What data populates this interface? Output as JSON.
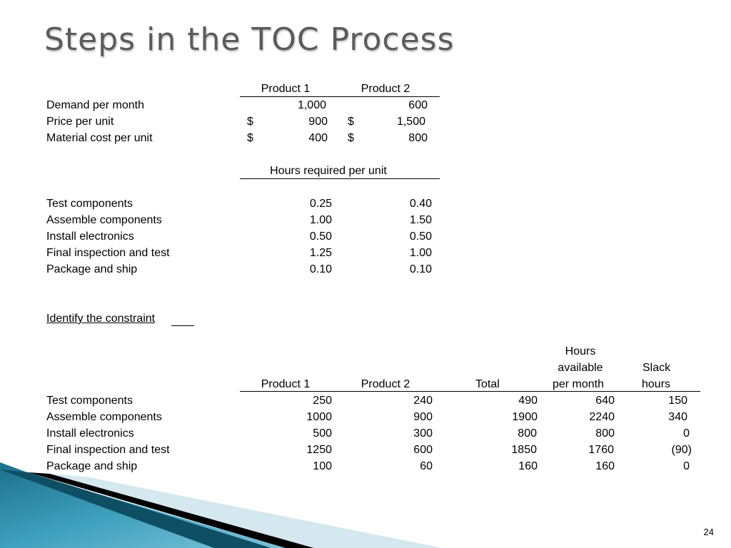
{
  "title": "Steps in the TOC Process",
  "page_number": "24",
  "product_table": {
    "headers": [
      "Product 1",
      "Product 2"
    ],
    "rows": [
      {
        "label": "Demand per month",
        "p1": "1,000",
        "p2": "600"
      },
      {
        "label": "Price per unit",
        "p1_cur": "$",
        "p1": "900",
        "p2_cur": "$",
        "p2": "1,500"
      },
      {
        "label": "Material cost per unit",
        "p1_cur": "$",
        "p1": "400",
        "p2_cur": "$",
        "p2": "800"
      }
    ]
  },
  "hours_table": {
    "header": "Hours required per unit",
    "rows": [
      {
        "label": "Test components",
        "p1": "0.25",
        "p2": "0.40"
      },
      {
        "label": "Assemble components",
        "p1": "1.00",
        "p2": "1.50"
      },
      {
        "label": "Install electronics",
        "p1": "0.50",
        "p2": "0.50"
      },
      {
        "label": "Final inspection and test",
        "p1": "1.25",
        "p2": "1.00"
      },
      {
        "label": "Package and ship",
        "p1": "0.10",
        "p2": "0.10"
      }
    ]
  },
  "constraint_heading": "Identify the constraint",
  "constraint_table": {
    "headers": {
      "p1": "Product 1",
      "p2": "Product 2",
      "total": "Total",
      "avail_1": "Hours",
      "avail_2": "available",
      "avail_3": "per month",
      "slack_1": "Slack",
      "slack_2": "hours"
    },
    "rows": [
      {
        "label": "Test components",
        "p1": "250",
        "p2": "240",
        "total": "490",
        "avail": "640",
        "slack": "150"
      },
      {
        "label": "Assemble components",
        "p1": "1000",
        "p2": "900",
        "total": "1900",
        "avail": "2240",
        "slack": "340"
      },
      {
        "label": "Install electronics",
        "p1": "500",
        "p2": "300",
        "total": "800",
        "avail": "800",
        "slack": "0"
      },
      {
        "label": "Final inspection and test",
        "p1": "1250",
        "p2": "600",
        "total": "1850",
        "avail": "1760",
        "slack": "(90)"
      },
      {
        "label": "Package and ship",
        "p1": "100",
        "p2": "60",
        "total": "160",
        "avail": "160",
        "slack": "0"
      }
    ]
  }
}
